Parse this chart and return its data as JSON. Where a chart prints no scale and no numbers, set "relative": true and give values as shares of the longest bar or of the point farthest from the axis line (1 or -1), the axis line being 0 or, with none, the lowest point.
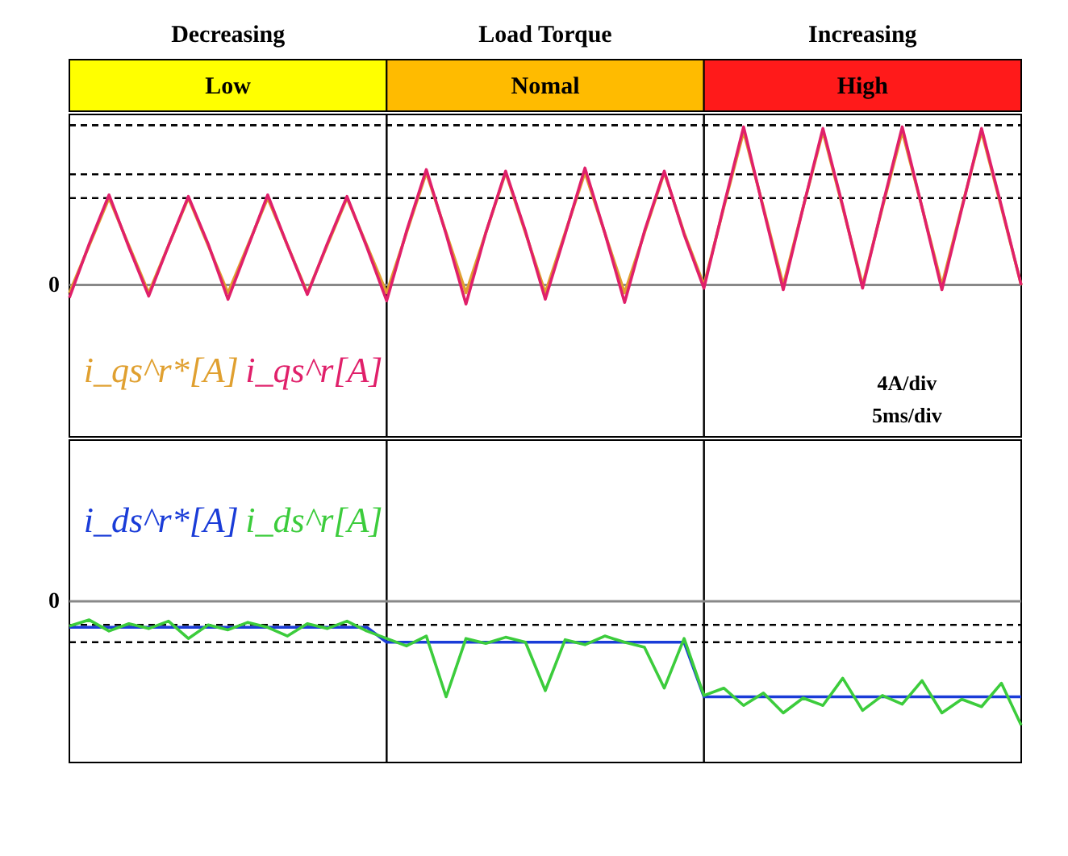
{
  "chart_data": [
    {
      "type": "other",
      "categories": [
        "Low",
        "Nomal",
        "High"
      ],
      "colors": [
        "#ffff00",
        "#ffbb00",
        "#ff1a1a"
      ],
      "annotations": [
        "Decreasing",
        "Load Torque",
        "Increasing"
      ]
    },
    {
      "type": "line",
      "relative": true,
      "categories": [
        null,
        null,
        null,
        null,
        null,
        null,
        null,
        null,
        null,
        null,
        null,
        null,
        null,
        null,
        null,
        null,
        null,
        null,
        null,
        null,
        null,
        null,
        null,
        null,
        null,
        null,
        null,
        null,
        null,
        null,
        null,
        null,
        null,
        null,
        null,
        null,
        null,
        null,
        null,
        null,
        null,
        null,
        null,
        null,
        null,
        null,
        null,
        null,
        null
      ],
      "series": [
        {
          "name": "i_qs^r*[A]",
          "color": "#e0a030",
          "values": [
            -0.05,
            0.25,
            0.55,
            0.25,
            -0.05,
            0.25,
            0.55,
            0.25,
            -0.05,
            0.25,
            0.55,
            0.25,
            -0.05,
            0.25,
            0.55,
            0.25,
            -0.05,
            0.33,
            0.71,
            0.33,
            -0.05,
            0.33,
            0.71,
            0.33,
            -0.05,
            0.33,
            0.71,
            0.33,
            -0.05,
            0.33,
            0.71,
            0.33,
            0,
            0.49,
            0.97,
            0.49,
            0,
            0.49,
            0.97,
            0.49,
            0,
            0.49,
            0.97,
            0.49,
            0,
            0.49,
            0.97,
            0.49,
            0
          ]
        },
        {
          "name": "i_qs^r[A]",
          "color": "#e0206a",
          "values": [
            -0.08,
            0.26,
            0.57,
            0.24,
            -0.07,
            0.25,
            0.56,
            0.26,
            -0.09,
            0.24,
            0.57,
            0.25,
            -0.06,
            0.26,
            0.56,
            0.24,
            -0.1,
            0.34,
            0.73,
            0.32,
            -0.12,
            0.33,
            0.72,
            0.34,
            -0.09,
            0.32,
            0.74,
            0.33,
            -0.11,
            0.34,
            0.72,
            0.32,
            -0.02,
            0.5,
            1.0,
            0.48,
            -0.03,
            0.49,
            0.99,
            0.5,
            -0.02,
            0.5,
            1.0,
            0.49,
            -0.03,
            0.48,
            0.99,
            0.5,
            0.0
          ]
        }
      ],
      "ref_lines": [
        {
          "axis": "y",
          "value": 1.01,
          "color": "#000000",
          "line_style": "dashed"
        },
        {
          "axis": "y",
          "value": 0.7,
          "color": "#000000",
          "line_style": "dashed"
        },
        {
          "axis": "y",
          "value": 0.55,
          "color": "#000000",
          "line_style": "dashed"
        }
      ],
      "annotations": [
        "4A/div",
        "5ms/div",
        "0"
      ]
    },
    {
      "type": "line",
      "relative": true,
      "categories": [
        null,
        null,
        null,
        null,
        null,
        null,
        null,
        null,
        null,
        null,
        null,
        null,
        null,
        null,
        null,
        null,
        null,
        null,
        null,
        null,
        null,
        null,
        null,
        null,
        null,
        null,
        null,
        null,
        null,
        null,
        null,
        null,
        null,
        null,
        null,
        null,
        null,
        null,
        null,
        null,
        null,
        null,
        null,
        null,
        null,
        null,
        null,
        null,
        null
      ],
      "series": [
        {
          "name": "i_ds^r*[A]",
          "color": "#1a3cd8",
          "values": [
            -0.21,
            -0.21,
            -0.21,
            -0.21,
            -0.21,
            -0.21,
            -0.21,
            -0.21,
            -0.21,
            -0.21,
            -0.21,
            -0.21,
            -0.21,
            -0.21,
            -0.21,
            -0.21,
            -0.33,
            -0.33,
            -0.33,
            -0.33,
            -0.33,
            -0.33,
            -0.33,
            -0.33,
            -0.33,
            -0.33,
            -0.33,
            -0.33,
            -0.33,
            -0.33,
            -0.33,
            -0.33,
            -0.77,
            -0.77,
            -0.77,
            -0.77,
            -0.77,
            -0.77,
            -0.77,
            -0.77,
            -0.77,
            -0.77,
            -0.77,
            -0.77,
            -0.77,
            -0.77,
            -0.77,
            -0.77,
            -0.77
          ]
        },
        {
          "name": "i_ds^r[A]",
          "color": "#3ccc3c",
          "values": [
            -0.2,
            -0.15,
            -0.24,
            -0.18,
            -0.22,
            -0.16,
            -0.3,
            -0.19,
            -0.23,
            -0.17,
            -0.21,
            -0.28,
            -0.18,
            -0.22,
            -0.16,
            -0.24,
            -0.3,
            -0.36,
            -0.28,
            -0.77,
            -0.3,
            -0.34,
            -0.29,
            -0.33,
            -0.72,
            -0.31,
            -0.35,
            -0.28,
            -0.33,
            -0.37,
            -0.7,
            -0.3,
            -0.76,
            -0.7,
            -0.84,
            -0.74,
            -0.9,
            -0.78,
            -0.84,
            -0.62,
            -0.88,
            -0.76,
            -0.83,
            -0.64,
            -0.9,
            -0.79,
            -0.85,
            -0.66,
            -1.0
          ]
        }
      ],
      "ref_lines": [
        {
          "axis": "y",
          "value": -0.19,
          "color": "#000000",
          "line_style": "dashed"
        },
        {
          "axis": "y",
          "value": -0.33,
          "color": "#000000",
          "line_style": "dashed"
        }
      ],
      "annotations": [
        "0"
      ]
    }
  ]
}
